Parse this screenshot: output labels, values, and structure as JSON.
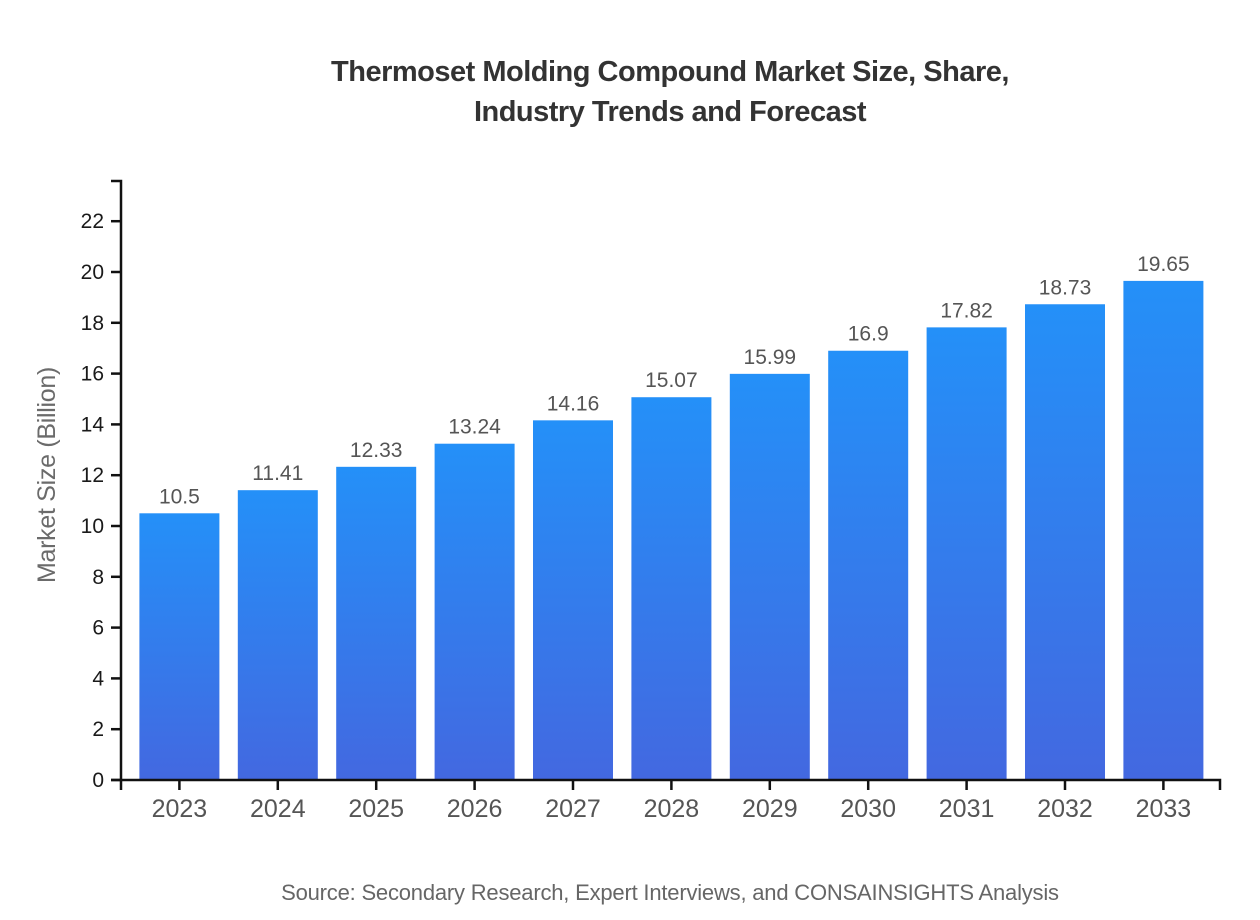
{
  "chart_data": {
    "type": "bar",
    "title_line1": "Thermoset Molding Compound Market Size, Share,",
    "title_line2": "Industry Trends and Forecast",
    "ylabel": "Market Size (Billion)",
    "xlabel": "",
    "source": "Source: Secondary Research, Expert Interviews, and CONSAINSIGHTS Analysis",
    "categories": [
      "2023",
      "2024",
      "2025",
      "2026",
      "2027",
      "2028",
      "2029",
      "2030",
      "2031",
      "2032",
      "2033"
    ],
    "values": [
      10.5,
      11.41,
      12.33,
      13.24,
      14.16,
      15.07,
      15.99,
      16.9,
      17.82,
      18.73,
      19.65
    ],
    "value_labels": [
      "10.5",
      "11.41",
      "12.33",
      "13.24",
      "14.16",
      "15.07",
      "15.99",
      "16.9",
      "17.82",
      "18.73",
      "19.65"
    ],
    "y_ticks": [
      0,
      2,
      4,
      6,
      8,
      10,
      12,
      14,
      16,
      18,
      20,
      22
    ],
    "ylim": [
      0,
      23.6
    ],
    "grid": "off",
    "legend": "none",
    "colors": {
      "bar_gradient_top": "#2490f8",
      "bar_gradient_bottom": "#4368e0",
      "title": "#333333",
      "axis_line": "#111111",
      "y_tick_label": "#1a1a1a",
      "x_tick_label": "#555555",
      "value_label": "#555555",
      "axis_title": "#6b6b6b",
      "source": "#666666",
      "background": "#ffffff"
    }
  }
}
